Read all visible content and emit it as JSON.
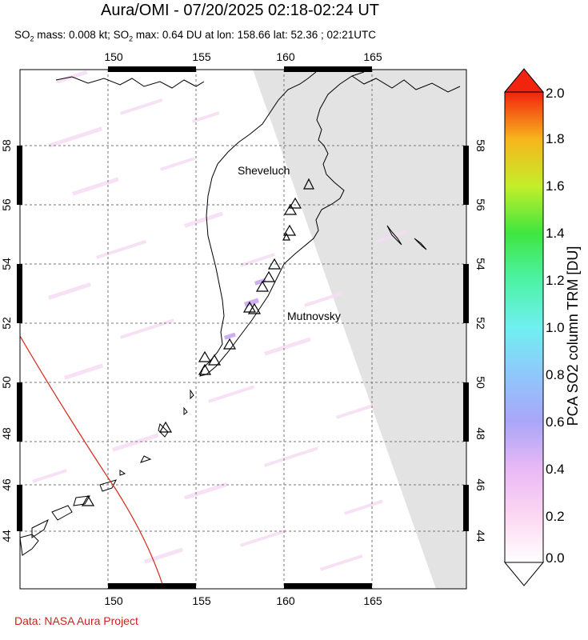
{
  "header": {
    "title": "Aura/OMI - 07/20/2025 02:18-02:24 UT",
    "subtitle_so2_mass_label": "SO",
    "subtitle_rest_1": " mass: 0.008 kt; SO",
    "subtitle_rest_2": " max: 0.64 DU at lon: 158.66 lat: 52.36 ; 02:21UTC"
  },
  "map": {
    "lon_ticks": [
      "150",
      "155",
      "160",
      "165"
    ],
    "lat_ticks": [
      "44",
      "46",
      "48",
      "50",
      "52",
      "54",
      "56",
      "58"
    ],
    "volcano_labels": {
      "sheveluch": "Sheveluch",
      "mutnovsky": "Mutnovsky"
    },
    "no_data_color": "#e3e3e3",
    "swath_edge_color": "#d42a1a"
  },
  "colorbar": {
    "title": "PCA SO2 column TRM [DU]",
    "ticks": [
      "0.0",
      "0.2",
      "0.4",
      "0.6",
      "0.8",
      "1.0",
      "1.2",
      "1.4",
      "1.6",
      "1.8",
      "2.0"
    ]
  },
  "footer": {
    "credit": "Data: NASA Aura Project"
  }
}
